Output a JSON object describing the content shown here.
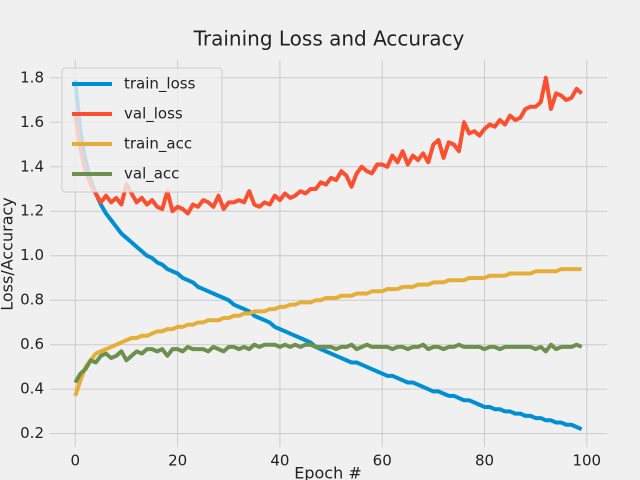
{
  "chart_data": {
    "type": "line",
    "title": "Training Loss and Accuracy",
    "x_label": "Epoch #",
    "y_label": "Loss/Accuracy",
    "x": [
      0,
      1,
      2,
      3,
      4,
      5,
      6,
      7,
      8,
      9,
      10,
      11,
      12,
      13,
      14,
      15,
      16,
      17,
      18,
      19,
      20,
      21,
      22,
      23,
      24,
      25,
      26,
      27,
      28,
      29,
      30,
      31,
      32,
      33,
      34,
      35,
      36,
      37,
      38,
      39,
      40,
      41,
      42,
      43,
      44,
      45,
      46,
      47,
      48,
      49,
      50,
      51,
      52,
      53,
      54,
      55,
      56,
      57,
      58,
      59,
      60,
      61,
      62,
      63,
      64,
      65,
      66,
      67,
      68,
      69,
      70,
      71,
      72,
      73,
      74,
      75,
      76,
      77,
      78,
      79,
      80,
      81,
      82,
      83,
      84,
      85,
      86,
      87,
      88,
      89,
      90,
      91,
      92,
      93,
      94,
      95,
      96,
      97,
      98,
      99
    ],
    "series": [
      {
        "name": "train_loss",
        "color": "#008fd5",
        "values": [
          1.79,
          1.56,
          1.43,
          1.34,
          1.28,
          1.23,
          1.19,
          1.16,
          1.13,
          1.1,
          1.08,
          1.06,
          1.04,
          1.02,
          1.0,
          0.99,
          0.97,
          0.96,
          0.94,
          0.93,
          0.92,
          0.9,
          0.89,
          0.88,
          0.86,
          0.85,
          0.84,
          0.83,
          0.82,
          0.81,
          0.8,
          0.78,
          0.77,
          0.76,
          0.75,
          0.73,
          0.72,
          0.71,
          0.7,
          0.68,
          0.67,
          0.66,
          0.65,
          0.64,
          0.63,
          0.62,
          0.61,
          0.59,
          0.58,
          0.57,
          0.56,
          0.55,
          0.54,
          0.53,
          0.52,
          0.52,
          0.51,
          0.5,
          0.49,
          0.48,
          0.47,
          0.46,
          0.46,
          0.45,
          0.44,
          0.43,
          0.43,
          0.42,
          0.41,
          0.4,
          0.39,
          0.39,
          0.38,
          0.37,
          0.37,
          0.36,
          0.35,
          0.35,
          0.34,
          0.33,
          0.32,
          0.32,
          0.31,
          0.31,
          0.3,
          0.3,
          0.29,
          0.29,
          0.28,
          0.28,
          0.27,
          0.27,
          0.26,
          0.26,
          0.25,
          0.25,
          0.24,
          0.24,
          0.23,
          0.22
        ]
      },
      {
        "name": "val_loss",
        "color": "#fc4f30",
        "values": [
          1.63,
          1.48,
          1.38,
          1.32,
          1.28,
          1.24,
          1.27,
          1.24,
          1.26,
          1.23,
          1.32,
          1.28,
          1.24,
          1.26,
          1.23,
          1.25,
          1.22,
          1.21,
          1.29,
          1.2,
          1.22,
          1.21,
          1.19,
          1.23,
          1.22,
          1.25,
          1.24,
          1.22,
          1.27,
          1.21,
          1.24,
          1.24,
          1.25,
          1.24,
          1.29,
          1.23,
          1.22,
          1.24,
          1.23,
          1.27,
          1.25,
          1.28,
          1.26,
          1.27,
          1.29,
          1.28,
          1.3,
          1.3,
          1.33,
          1.32,
          1.35,
          1.34,
          1.38,
          1.36,
          1.31,
          1.37,
          1.4,
          1.38,
          1.37,
          1.41,
          1.41,
          1.4,
          1.45,
          1.42,
          1.47,
          1.41,
          1.45,
          1.43,
          1.46,
          1.42,
          1.5,
          1.52,
          1.44,
          1.51,
          1.5,
          1.47,
          1.6,
          1.55,
          1.56,
          1.54,
          1.57,
          1.59,
          1.58,
          1.61,
          1.59,
          1.63,
          1.61,
          1.62,
          1.66,
          1.67,
          1.67,
          1.69,
          1.8,
          1.66,
          1.73,
          1.72,
          1.7,
          1.71,
          1.75,
          1.73
        ]
      },
      {
        "name": "train_acc",
        "color": "#e5ae38",
        "values": [
          0.37,
          0.44,
          0.5,
          0.53,
          0.56,
          0.57,
          0.58,
          0.59,
          0.6,
          0.61,
          0.62,
          0.63,
          0.63,
          0.64,
          0.64,
          0.65,
          0.66,
          0.66,
          0.67,
          0.67,
          0.68,
          0.68,
          0.69,
          0.69,
          0.7,
          0.7,
          0.71,
          0.71,
          0.71,
          0.72,
          0.72,
          0.73,
          0.73,
          0.74,
          0.74,
          0.75,
          0.75,
          0.75,
          0.76,
          0.76,
          0.77,
          0.77,
          0.78,
          0.78,
          0.79,
          0.79,
          0.79,
          0.8,
          0.8,
          0.81,
          0.81,
          0.81,
          0.82,
          0.82,
          0.82,
          0.83,
          0.83,
          0.83,
          0.84,
          0.84,
          0.84,
          0.85,
          0.85,
          0.85,
          0.86,
          0.86,
          0.86,
          0.87,
          0.87,
          0.87,
          0.88,
          0.88,
          0.88,
          0.89,
          0.89,
          0.89,
          0.89,
          0.9,
          0.9,
          0.9,
          0.9,
          0.91,
          0.91,
          0.91,
          0.91,
          0.92,
          0.92,
          0.92,
          0.92,
          0.92,
          0.93,
          0.93,
          0.93,
          0.93,
          0.93,
          0.94,
          0.94,
          0.94,
          0.94,
          0.94
        ]
      },
      {
        "name": "val_acc",
        "color": "#6d904f",
        "values": [
          0.43,
          0.47,
          0.49,
          0.53,
          0.52,
          0.55,
          0.56,
          0.54,
          0.55,
          0.57,
          0.53,
          0.55,
          0.57,
          0.56,
          0.58,
          0.58,
          0.57,
          0.58,
          0.55,
          0.58,
          0.58,
          0.57,
          0.59,
          0.58,
          0.58,
          0.58,
          0.57,
          0.59,
          0.58,
          0.57,
          0.59,
          0.59,
          0.58,
          0.59,
          0.58,
          0.6,
          0.59,
          0.6,
          0.6,
          0.6,
          0.59,
          0.6,
          0.59,
          0.6,
          0.59,
          0.6,
          0.6,
          0.59,
          0.59,
          0.59,
          0.59,
          0.58,
          0.59,
          0.59,
          0.6,
          0.58,
          0.59,
          0.6,
          0.59,
          0.59,
          0.59,
          0.59,
          0.58,
          0.59,
          0.59,
          0.58,
          0.59,
          0.59,
          0.6,
          0.58,
          0.59,
          0.59,
          0.58,
          0.59,
          0.59,
          0.6,
          0.59,
          0.59,
          0.59,
          0.59,
          0.58,
          0.59,
          0.59,
          0.58,
          0.59,
          0.59,
          0.59,
          0.59,
          0.59,
          0.59,
          0.58,
          0.59,
          0.57,
          0.6,
          0.58,
          0.59,
          0.59,
          0.59,
          0.6,
          0.59
        ]
      }
    ],
    "xlim": [
      -4.95,
      103.95
    ],
    "xticks": [
      0,
      20,
      40,
      60,
      80,
      100
    ],
    "ylim": [
      0.14,
      1.88
    ],
    "yticks": [
      0.2,
      0.4,
      0.6,
      0.8,
      {
        "value": 1,
        "label": "1.0"
      },
      1.2,
      1.4,
      1.6,
      1.8
    ],
    "grid": true,
    "legend": "upper left"
  }
}
